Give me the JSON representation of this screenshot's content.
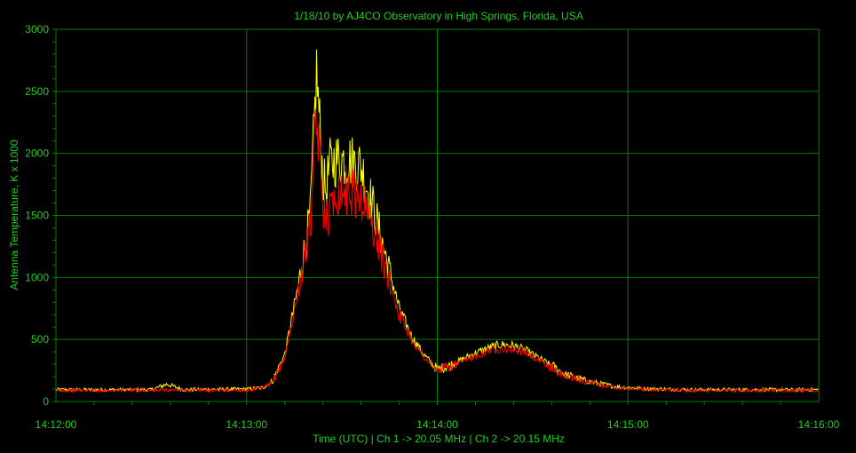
{
  "chart_data": {
    "type": "line",
    "title": "1/18/10  by  AJ4CO Observatory  in  High Springs, Florida, USA",
    "xlabel": "Time (UTC)  |  Ch 1 -> 20.05 MHz  |  Ch 2 -> 20.15 MHz",
    "ylabel": "Antenna Temperature, K x 1000",
    "xlim": [
      "14:12:00",
      "14:16:00"
    ],
    "ylim": [
      0,
      3000
    ],
    "x_ticks": [
      "14:12:00",
      "14:13:00",
      "14:14:00",
      "14:15:00",
      "14:16:00"
    ],
    "y_ticks": [
      "0",
      "500",
      "1000",
      "1500",
      "2000",
      "2500",
      "3000"
    ],
    "grid": true,
    "colors": {
      "background": "#000000",
      "grid": "#008000",
      "text": "#22cc22",
      "ch1": "#ffff00",
      "ch2": "#ff0000"
    },
    "series": [
      {
        "color": "#ffff00",
        "x": [
          "14:12:00",
          "14:12:30",
          "14:12:35",
          "14:12:40",
          "14:13:00",
          "14:13:05",
          "14:13:08",
          "14:13:12",
          "14:13:16",
          "14:13:20",
          "14:13:22",
          "14:13:24",
          "14:13:25",
          "14:13:26",
          "14:13:28",
          "14:13:32",
          "14:13:36",
          "14:13:40",
          "14:13:44",
          "14:13:48",
          "14:13:52",
          "14:13:56",
          "14:14:00",
          "14:14:04",
          "14:14:08",
          "14:14:12",
          "14:14:16",
          "14:14:20",
          "14:14:24",
          "14:14:28",
          "14:14:32",
          "14:14:36",
          "14:14:40",
          "14:14:48",
          "14:14:56",
          "14:15:04",
          "14:15:20",
          "14:15:40",
          "14:16:00"
        ],
        "values": [
          95,
          95,
          140,
          95,
          100,
          110,
          160,
          380,
          900,
          1500,
          2650,
          1800,
          1700,
          1900,
          1950,
          1950,
          1900,
          1550,
          1150,
          750,
          520,
          370,
          260,
          290,
          340,
          390,
          430,
          460,
          450,
          410,
          350,
          290,
          220,
          160,
          120,
          105,
          95,
          95,
          95
        ]
      },
      {
        "color": "#ff0000",
        "x": [
          "14:12:00",
          "14:13:00",
          "14:13:05",
          "14:13:08",
          "14:13:12",
          "14:13:16",
          "14:13:20",
          "14:13:22",
          "14:13:24",
          "14:13:26",
          "14:13:28",
          "14:13:32",
          "14:13:36",
          "14:13:40",
          "14:13:44",
          "14:13:48",
          "14:13:52",
          "14:13:56",
          "14:14:00",
          "14:14:04",
          "14:14:08",
          "14:14:12",
          "14:14:16",
          "14:14:20",
          "14:14:24",
          "14:14:28",
          "14:14:32",
          "14:14:36",
          "14:14:40",
          "14:14:48",
          "14:14:56",
          "14:15:04",
          "14:15:20",
          "14:15:40",
          "14:16:00"
        ],
        "values": [
          90,
          92,
          105,
          150,
          350,
          850,
          1400,
          2300,
          1600,
          1500,
          1700,
          1700,
          1650,
          1400,
          1050,
          700,
          500,
          350,
          250,
          280,
          320,
          370,
          410,
          430,
          420,
          390,
          330,
          270,
          210,
          150,
          115,
          100,
          90,
          90,
          90
        ]
      }
    ]
  }
}
